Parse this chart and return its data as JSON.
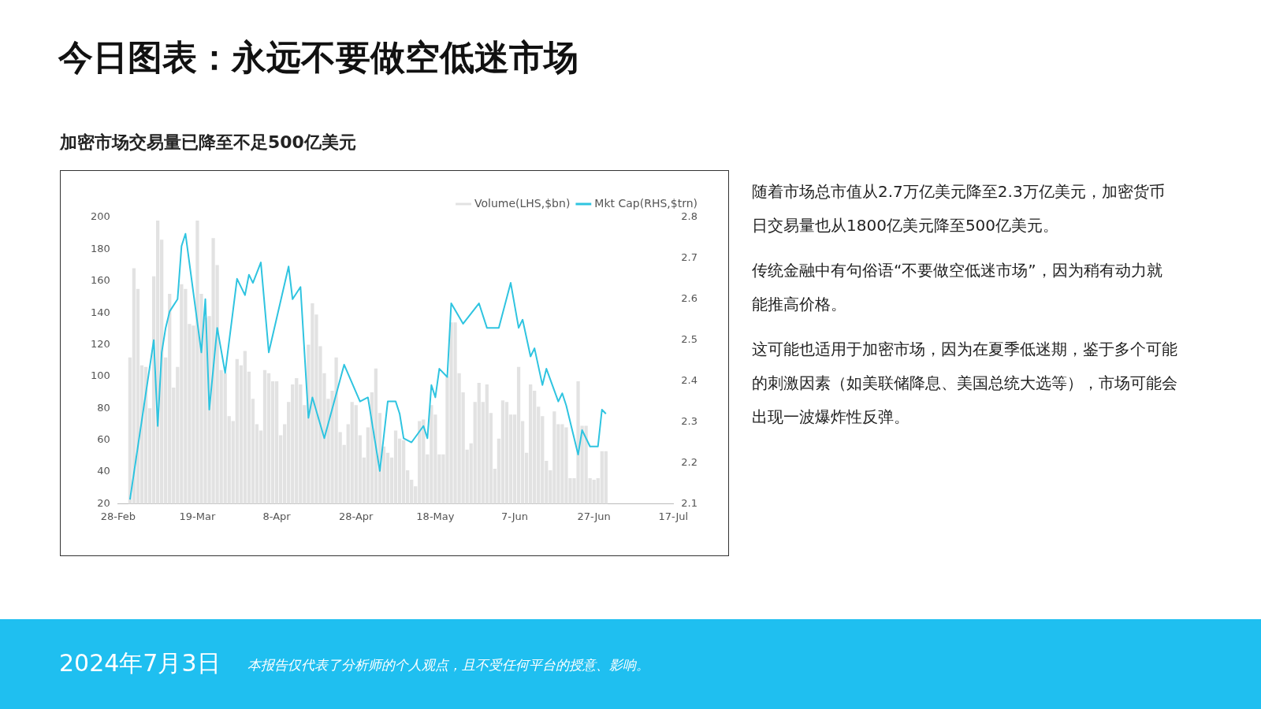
{
  "chart_data": {
    "type": "bar",
    "title": "今日图表：永远不要做空低迷市场",
    "subtitle": "加密市场交易量已降至不足500亿美元",
    "annotations": [
      "随着市场总市值从2.7万亿美元降至2.3万亿美元，加密货币日交易量也从1800亿美元降至500亿美元。",
      "传统金融中有句俗语“不要做空低迷市场”，因为稍有动力就能推高价格。",
      "这可能也适用于加密市场，因为在夏季低迷期，鉴于多个可能的刺激因素（如美联储降息、美国总统大选等），市场可能会出现一波爆炸性反弹。",
      "2024年7月3日",
      "本报告仅代表了分析师的个人观点，且不受任何平台的授意、影响。"
    ],
    "xlim": [
      "2024-02-28",
      "2024-07-17"
    ],
    "xticks": [
      {
        "value": "2024-02-28",
        "label": "28-Feb"
      },
      {
        "value": "2024-03-19",
        "label": "19-Mar"
      },
      {
        "value": "2024-04-08",
        "label": "8-Apr"
      },
      {
        "value": "2024-04-28",
        "label": "28-Apr"
      },
      {
        "value": "2024-05-18",
        "label": "18-May"
      },
      {
        "value": "2024-06-07",
        "label": "7-Jun"
      },
      {
        "value": "2024-06-27",
        "label": "27-Jun"
      },
      {
        "value": "2024-07-17",
        "label": "17-Jul"
      }
    ],
    "ylim": [
      20,
      200
    ],
    "yticks": [
      20,
      40,
      60,
      80,
      100,
      120,
      140,
      160,
      180,
      200
    ],
    "y2lim": [
      2.1,
      2.8
    ],
    "y2ticks": [
      2.1,
      2.2,
      2.3,
      2.4,
      2.5,
      2.6,
      2.7,
      2.8
    ],
    "legend": "top right",
    "series": [
      {
        "name": "Volume(LHS,$bn)",
        "color": "#e2e2e2",
        "x": [
          "2024-03-02",
          "2024-03-03",
          "2024-03-04",
          "2024-03-05",
          "2024-03-06",
          "2024-03-07",
          "2024-03-08",
          "2024-03-09",
          "2024-03-10",
          "2024-03-11",
          "2024-03-12",
          "2024-03-13",
          "2024-03-14",
          "2024-03-15",
          "2024-03-16",
          "2024-03-17",
          "2024-03-18",
          "2024-03-19",
          "2024-03-20",
          "2024-03-21",
          "2024-03-22",
          "2024-03-23",
          "2024-03-24",
          "2024-03-25",
          "2024-03-26",
          "2024-03-27",
          "2024-03-28",
          "2024-03-29",
          "2024-03-30",
          "2024-03-31",
          "2024-04-01",
          "2024-04-02",
          "2024-04-03",
          "2024-04-04",
          "2024-04-05",
          "2024-04-06",
          "2024-04-07",
          "2024-04-08",
          "2024-04-09",
          "2024-04-10",
          "2024-04-11",
          "2024-04-12",
          "2024-04-13",
          "2024-04-14",
          "2024-04-15",
          "2024-04-16",
          "2024-04-17",
          "2024-04-18",
          "2024-04-19",
          "2024-04-20",
          "2024-04-21",
          "2024-04-22",
          "2024-04-23",
          "2024-04-24",
          "2024-04-25",
          "2024-04-26",
          "2024-04-27",
          "2024-04-28",
          "2024-04-29",
          "2024-04-30",
          "2024-05-01",
          "2024-05-02",
          "2024-05-03",
          "2024-05-04",
          "2024-05-05",
          "2024-05-06",
          "2024-05-07",
          "2024-05-08",
          "2024-05-09",
          "2024-05-10",
          "2024-05-11",
          "2024-05-12",
          "2024-05-13",
          "2024-05-14",
          "2024-05-15",
          "2024-05-16",
          "2024-05-17",
          "2024-05-18",
          "2024-05-19",
          "2024-05-20",
          "2024-05-21",
          "2024-05-22",
          "2024-05-23",
          "2024-05-24",
          "2024-05-25",
          "2024-05-26",
          "2024-05-27",
          "2024-05-28",
          "2024-05-29",
          "2024-05-30",
          "2024-05-31",
          "2024-06-01",
          "2024-06-02",
          "2024-06-03",
          "2024-06-04",
          "2024-06-05",
          "2024-06-06",
          "2024-06-07",
          "2024-06-08",
          "2024-06-09",
          "2024-06-10",
          "2024-06-11",
          "2024-06-12",
          "2024-06-13",
          "2024-06-14",
          "2024-06-15",
          "2024-06-16",
          "2024-06-17",
          "2024-06-18",
          "2024-06-19",
          "2024-06-20",
          "2024-06-21",
          "2024-06-22",
          "2024-06-23",
          "2024-06-24",
          "2024-06-25",
          "2024-06-26",
          "2024-06-27",
          "2024-06-28",
          "2024-06-29",
          "2024-06-30"
        ],
        "values": [
          112,
          168,
          155,
          107,
          106,
          80,
          163,
          198,
          186,
          112,
          152,
          93,
          106,
          158,
          155,
          133,
          132,
          198,
          152,
          137,
          138,
          187,
          170,
          104,
          102,
          75,
          72,
          111,
          107,
          116,
          103,
          86,
          70,
          66,
          104,
          102,
          97,
          97,
          63,
          70,
          84,
          95,
          99,
          95,
          82,
          120,
          146,
          139,
          119,
          102,
          86,
          91,
          112,
          65,
          57,
          70,
          84,
          82,
          63,
          49,
          68,
          90,
          105,
          77,
          56,
          52,
          49,
          66,
          61,
          60,
          41,
          35,
          31,
          72,
          73,
          51,
          82,
          76,
          51,
          51,
          100,
          134,
          134,
          102,
          90,
          54,
          58,
          84,
          96,
          84,
          95,
          77,
          42,
          61,
          85,
          84,
          76,
          76,
          106,
          72,
          52,
          95,
          91,
          81,
          75,
          47,
          41,
          78,
          70,
          70,
          68,
          36,
          36,
          97,
          69,
          69,
          36,
          35,
          36,
          53,
          53
        ]
      },
      {
        "name": "Mkt Cap(RHS,$trn)",
        "type": "line",
        "axis": "y2",
        "color": "#2fc4e0",
        "x": [
          "2024-03-02",
          "2024-03-08",
          "2024-03-09",
          "2024-03-10",
          "2024-03-11",
          "2024-03-12",
          "2024-03-14",
          "2024-03-15",
          "2024-03-16",
          "2024-03-20",
          "2024-03-21",
          "2024-03-22",
          "2024-03-24",
          "2024-03-26",
          "2024-03-29",
          "2024-03-31",
          "2024-04-01",
          "2024-04-02",
          "2024-04-04",
          "2024-04-06",
          "2024-04-11",
          "2024-04-12",
          "2024-04-14",
          "2024-04-16",
          "2024-04-17",
          "2024-04-20",
          "2024-04-25",
          "2024-04-29",
          "2024-05-01",
          "2024-05-04",
          "2024-05-06",
          "2024-05-08",
          "2024-05-09",
          "2024-05-10",
          "2024-05-12",
          "2024-05-15",
          "2024-05-16",
          "2024-05-17",
          "2024-05-18",
          "2024-05-19",
          "2024-05-21",
          "2024-05-22",
          "2024-05-25",
          "2024-05-29",
          "2024-05-31",
          "2024-06-03",
          "2024-06-06",
          "2024-06-08",
          "2024-06-09",
          "2024-06-11",
          "2024-06-12",
          "2024-06-14",
          "2024-06-15",
          "2024-06-18",
          "2024-06-19",
          "2024-06-20",
          "2024-06-23",
          "2024-06-24",
          "2024-06-26",
          "2024-06-28",
          "2024-06-29",
          "2024-06-30"
        ],
        "values": [
          2.11,
          2.5,
          2.29,
          2.47,
          2.53,
          2.57,
          2.6,
          2.73,
          2.76,
          2.47,
          2.6,
          2.33,
          2.53,
          2.42,
          2.65,
          2.61,
          2.66,
          2.64,
          2.69,
          2.47,
          2.68,
          2.6,
          2.63,
          2.31,
          2.36,
          2.26,
          2.44,
          2.35,
          2.36,
          2.18,
          2.35,
          2.35,
          2.32,
          2.26,
          2.25,
          2.29,
          2.26,
          2.39,
          2.36,
          2.43,
          2.41,
          2.59,
          2.54,
          2.59,
          2.53,
          2.53,
          2.64,
          2.53,
          2.55,
          2.46,
          2.48,
          2.39,
          2.43,
          2.35,
          2.37,
          2.34,
          2.22,
          2.28,
          2.24,
          2.24,
          2.33,
          2.32
        ]
      }
    ]
  }
}
